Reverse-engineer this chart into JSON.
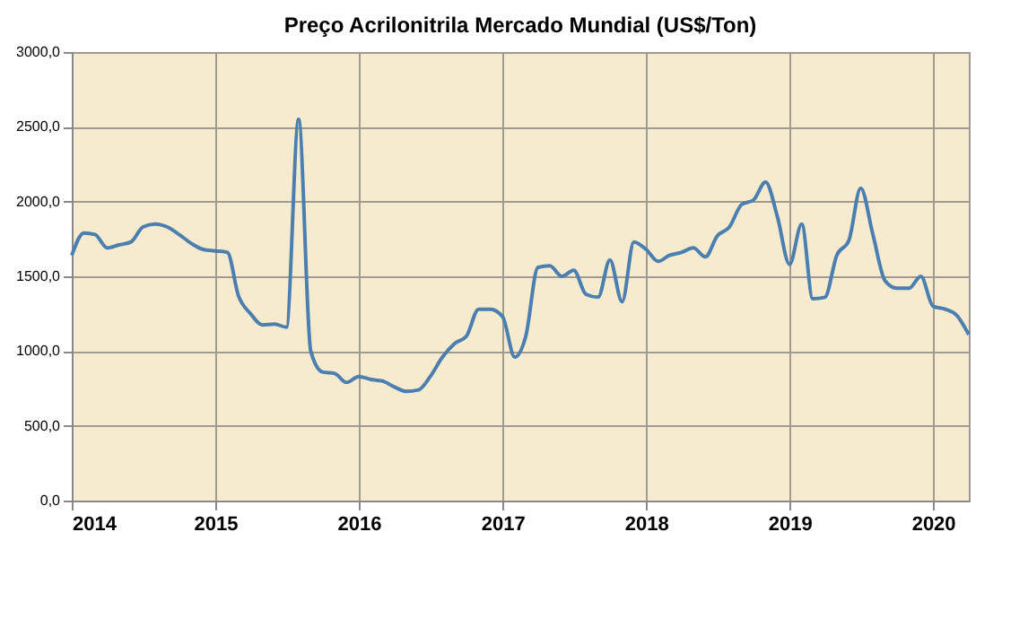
{
  "chart_data": {
    "type": "line",
    "title": "Preço Acrilonitrila Mercado Mundial (US$/Ton)",
    "x": [
      "2014-01",
      "2014-02",
      "2014-03",
      "2014-04",
      "2014-05",
      "2014-06",
      "2014-07",
      "2014-08",
      "2014-09",
      "2014-10",
      "2014-11",
      "2014-12",
      "2015-01",
      "2015-02",
      "2015-03",
      "2015-04",
      "2015-05",
      "2015-06",
      "2015-07",
      "2015-08",
      "2015-09",
      "2015-10",
      "2015-11",
      "2015-12",
      "2016-01",
      "2016-02",
      "2016-03",
      "2016-04",
      "2016-05",
      "2016-06",
      "2016-07",
      "2016-08",
      "2016-09",
      "2016-10",
      "2016-11",
      "2016-12",
      "2017-01",
      "2017-02",
      "2017-03",
      "2017-04",
      "2017-05",
      "2017-06",
      "2017-07",
      "2017-08",
      "2017-09",
      "2017-10",
      "2017-11",
      "2017-12",
      "2018-01",
      "2018-02",
      "2018-03",
      "2018-04",
      "2018-05",
      "2018-06",
      "2018-07",
      "2018-08",
      "2018-09",
      "2018-10",
      "2018-11",
      "2018-12",
      "2019-01",
      "2019-02",
      "2019-03",
      "2019-04",
      "2019-05",
      "2019-06",
      "2019-07",
      "2019-08",
      "2019-09",
      "2019-10",
      "2019-11",
      "2019-12",
      "2020-01",
      "2020-02",
      "2020-03",
      "2020-04"
    ],
    "series": [
      {
        "color": "#4a7fb0",
        "values": [
          1640,
          1790,
          1780,
          1690,
          1710,
          1730,
          1830,
          1850,
          1830,
          1780,
          1720,
          1680,
          1670,
          1660,
          1370,
          1250,
          1175,
          1180,
          1160,
          2550,
          1000,
          860,
          850,
          790,
          830,
          810,
          800,
          760,
          730,
          740,
          830,
          960,
          1050,
          1100,
          1280,
          1280,
          1230,
          960,
          1100,
          1560,
          1570,
          1500,
          1540,
          1380,
          1360,
          1610,
          1330,
          1730,
          1680,
          1600,
          1640,
          1660,
          1690,
          1630,
          1770,
          1830,
          1980,
          2010,
          2130,
          1900,
          1580,
          1850,
          1350,
          1360,
          1640,
          1740,
          2090,
          1780,
          1470,
          1420,
          1420,
          1500,
          1300,
          1280,
          1240,
          1110
        ]
      }
    ],
    "xlim": [
      "2014-01",
      "2020-04"
    ],
    "xticks": [
      "2014",
      "2015",
      "2016",
      "2017",
      "2018",
      "2019",
      "2020"
    ],
    "ylim": [
      0,
      3000
    ],
    "yticks": [
      {
        "value": 0,
        "label": "0,0"
      },
      {
        "value": 500,
        "label": "500,0"
      },
      {
        "value": 1000,
        "label": "1000,0"
      },
      {
        "value": 1500,
        "label": "1500,0"
      },
      {
        "value": 2000,
        "label": "2000,0"
      },
      {
        "value": 2500,
        "label": "2500,0"
      },
      {
        "value": 3000,
        "label": "3000,0"
      }
    ],
    "grid": true,
    "marker": "none",
    "line_style": "solid"
  }
}
